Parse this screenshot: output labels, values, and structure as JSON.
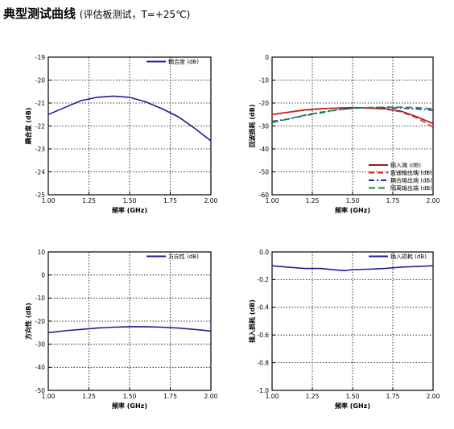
{
  "page": {
    "title": "典型测试曲线",
    "subtitle": "(评估板测试，T=+25℃)"
  },
  "chart_data": [
    {
      "type": "line",
      "title": "",
      "xlabel": "频率 (GHz)",
      "ylabel": "耦合度 (dB)",
      "xlim": [
        1.0,
        2.0
      ],
      "ylim": [
        -25,
        -19
      ],
      "x_ticks": [
        "1.00",
        "1.25",
        "1.50",
        "1.75",
        "2.00"
      ],
      "y_ticks": [
        "-19",
        "-20",
        "-21",
        "-22",
        "-23",
        "-24",
        "-25"
      ],
      "y_inverted": true,
      "grid": true,
      "legend": "top-right",
      "series": [
        {
          "name": "耦合度 (dB)",
          "color": "#1f1f8f",
          "dash": "solid",
          "x": [
            1.0,
            1.1,
            1.2,
            1.3,
            1.4,
            1.5,
            1.6,
            1.7,
            1.8,
            1.9,
            2.0
          ],
          "y": [
            -21.5,
            -21.2,
            -20.9,
            -20.75,
            -20.7,
            -20.75,
            -20.95,
            -21.25,
            -21.6,
            -22.1,
            -22.65
          ]
        }
      ]
    },
    {
      "type": "line",
      "title": "",
      "xlabel": "频率 (GHz)",
      "ylabel": "回波损耗 (dB)",
      "xlim": [
        1.0,
        2.0
      ],
      "ylim": [
        -60,
        0
      ],
      "x_ticks": [
        "1.00",
        "1.25",
        "1.50",
        "1.75",
        "2.00"
      ],
      "y_ticks": [
        "0",
        "-10",
        "-20",
        "-30",
        "-40",
        "-50",
        "-60"
      ],
      "y_inverted": false,
      "grid": true,
      "legend": "bottom-right",
      "series": [
        {
          "name": "输入端 (dB)",
          "color": "#8c1e28",
          "dash": "solid",
          "x": [
            1.0,
            1.1,
            1.2,
            1.3,
            1.4,
            1.5,
            1.6,
            1.7,
            1.8,
            1.9,
            2.0
          ],
          "y": [
            -25,
            -24,
            -23,
            -22.5,
            -22.2,
            -22,
            -22.2,
            -22.5,
            -23.5,
            -26,
            -29
          ]
        },
        {
          "name": "直通输出端 (dB)",
          "color": "#e0221d",
          "dash": "7,4",
          "x": [
            1.0,
            1.1,
            1.2,
            1.3,
            1.4,
            1.5,
            1.6,
            1.7,
            1.8,
            1.9,
            2.0
          ],
          "y": [
            -25,
            -24,
            -23.2,
            -22.6,
            -22.2,
            -22,
            -22.2,
            -22.6,
            -23.8,
            -26.5,
            -30.5
          ]
        },
        {
          "name": "耦合输出端 (dB)",
          "color": "#1f2ea8",
          "dash": "7,3,2,3",
          "x": [
            1.0,
            1.1,
            1.2,
            1.3,
            1.4,
            1.5,
            1.6,
            1.7,
            1.8,
            1.9,
            2.0
          ],
          "y": [
            -28,
            -27,
            -25.5,
            -24.3,
            -23,
            -22.2,
            -22,
            -22,
            -22.2,
            -22.6,
            -23.2
          ]
        },
        {
          "name": "隔离输出端 (dB)",
          "color": "#1e8a2e",
          "dash": "8,4",
          "x": [
            1.0,
            1.1,
            1.2,
            1.3,
            1.4,
            1.5,
            1.6,
            1.7,
            1.8,
            1.9,
            2.0
          ],
          "y": [
            -28.5,
            -27,
            -25.3,
            -24,
            -23,
            -22.4,
            -22,
            -21.8,
            -21.8,
            -22,
            -22.5
          ]
        }
      ]
    },
    {
      "type": "line",
      "title": "",
      "xlabel": "频率 (GHz)",
      "ylabel": "方向性 (dB)",
      "xlim": [
        1.0,
        2.0
      ],
      "ylim": [
        -50,
        10
      ],
      "x_ticks": [
        "1.00",
        "1.25",
        "1.50",
        "1.75",
        "2.00"
      ],
      "y_ticks": [
        "10",
        "0",
        "-10",
        "-20",
        "-30",
        "-40",
        "-50"
      ],
      "y_inverted": false,
      "grid": true,
      "legend": "top-right",
      "series": [
        {
          "name": "方向性 (dB)",
          "color": "#1f1f8f",
          "dash": "solid",
          "x": [
            1.0,
            1.1,
            1.2,
            1.3,
            1.4,
            1.5,
            1.6,
            1.7,
            1.8,
            1.9,
            2.0
          ],
          "y": [
            -25,
            -24.2,
            -23.6,
            -23,
            -22.6,
            -22.4,
            -22.4,
            -22.6,
            -23.0,
            -23.6,
            -24.3
          ]
        }
      ]
    },
    {
      "type": "line",
      "title": "",
      "xlabel": "频率 (GHz)",
      "ylabel": "插入损耗 (dB)",
      "xlim": [
        1.0,
        2.0
      ],
      "ylim": [
        -1.0,
        0.0
      ],
      "x_ticks": [
        "1.00",
        "1.25",
        "1.50",
        "1.75",
        "2.00"
      ],
      "y_ticks": [
        "0.0",
        "-0.2",
        "-0.4",
        "-0.6",
        "-0.8",
        "-1.0"
      ],
      "y_inverted": false,
      "grid": true,
      "legend": "top-right",
      "series": [
        {
          "name": "插入损耗 (dB)",
          "color": "#1f1f8f",
          "dash": "solid",
          "x": [
            1.0,
            1.1,
            1.2,
            1.3,
            1.4,
            1.45,
            1.5,
            1.6,
            1.7,
            1.8,
            1.9,
            2.0
          ],
          "y": [
            -0.1,
            -0.11,
            -0.12,
            -0.12,
            -0.13,
            -0.135,
            -0.128,
            -0.125,
            -0.12,
            -0.11,
            -0.105,
            -0.1
          ]
        }
      ]
    }
  ]
}
